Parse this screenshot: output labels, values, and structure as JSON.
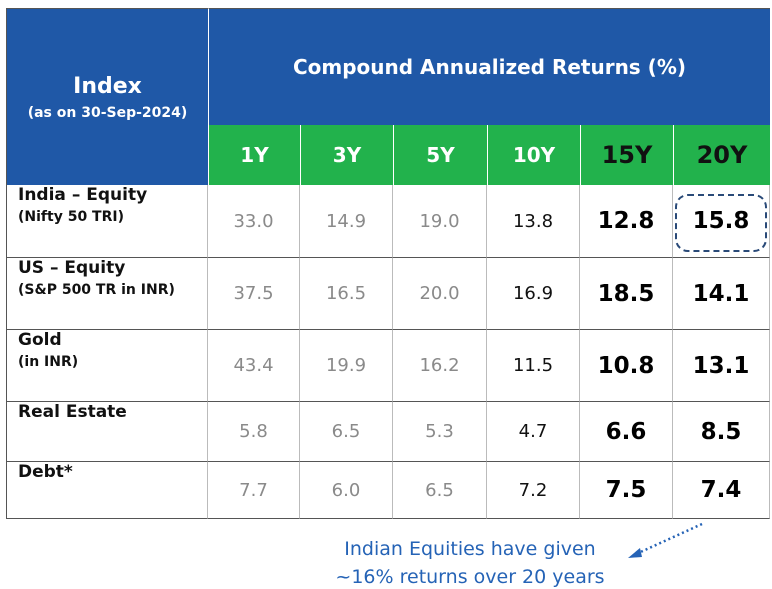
{
  "header": {
    "index_title": "Index",
    "index_subtitle": "(as on 30-Sep-2024)",
    "returns_title": "Compound Annualized Returns (%)",
    "columns": [
      "1Y",
      "3Y",
      "5Y",
      "10Y",
      "15Y",
      "20Y"
    ]
  },
  "table": {
    "rows": [
      {
        "name": "India – Equity",
        "sub": "(Nifty 50 TRI)",
        "values": [
          "33.0",
          "14.9",
          "19.0",
          "13.8",
          "12.8",
          "15.8"
        ]
      },
      {
        "name": "US – Equity",
        "sub": "(S&P 500 TR in INR)",
        "values": [
          "37.5",
          "16.5",
          "20.0",
          "16.9",
          "18.5",
          "14.1"
        ]
      },
      {
        "name": "Gold",
        "sub": "(in INR)",
        "values": [
          "43.4",
          "19.9",
          "16.2",
          "11.5",
          "10.8",
          "13.1"
        ]
      },
      {
        "name": "Real Estate",
        "values": [
          "5.8",
          "6.5",
          "5.3",
          "4.7",
          "6.6",
          "8.5"
        ]
      },
      {
        "name": "Debt*",
        "values": [
          "7.7",
          "6.0",
          "6.5",
          "7.2",
          "7.5",
          "7.4"
        ]
      }
    ]
  },
  "note": [
    "Indian Equities have given",
    "~16% returns over 20 years"
  ]
}
